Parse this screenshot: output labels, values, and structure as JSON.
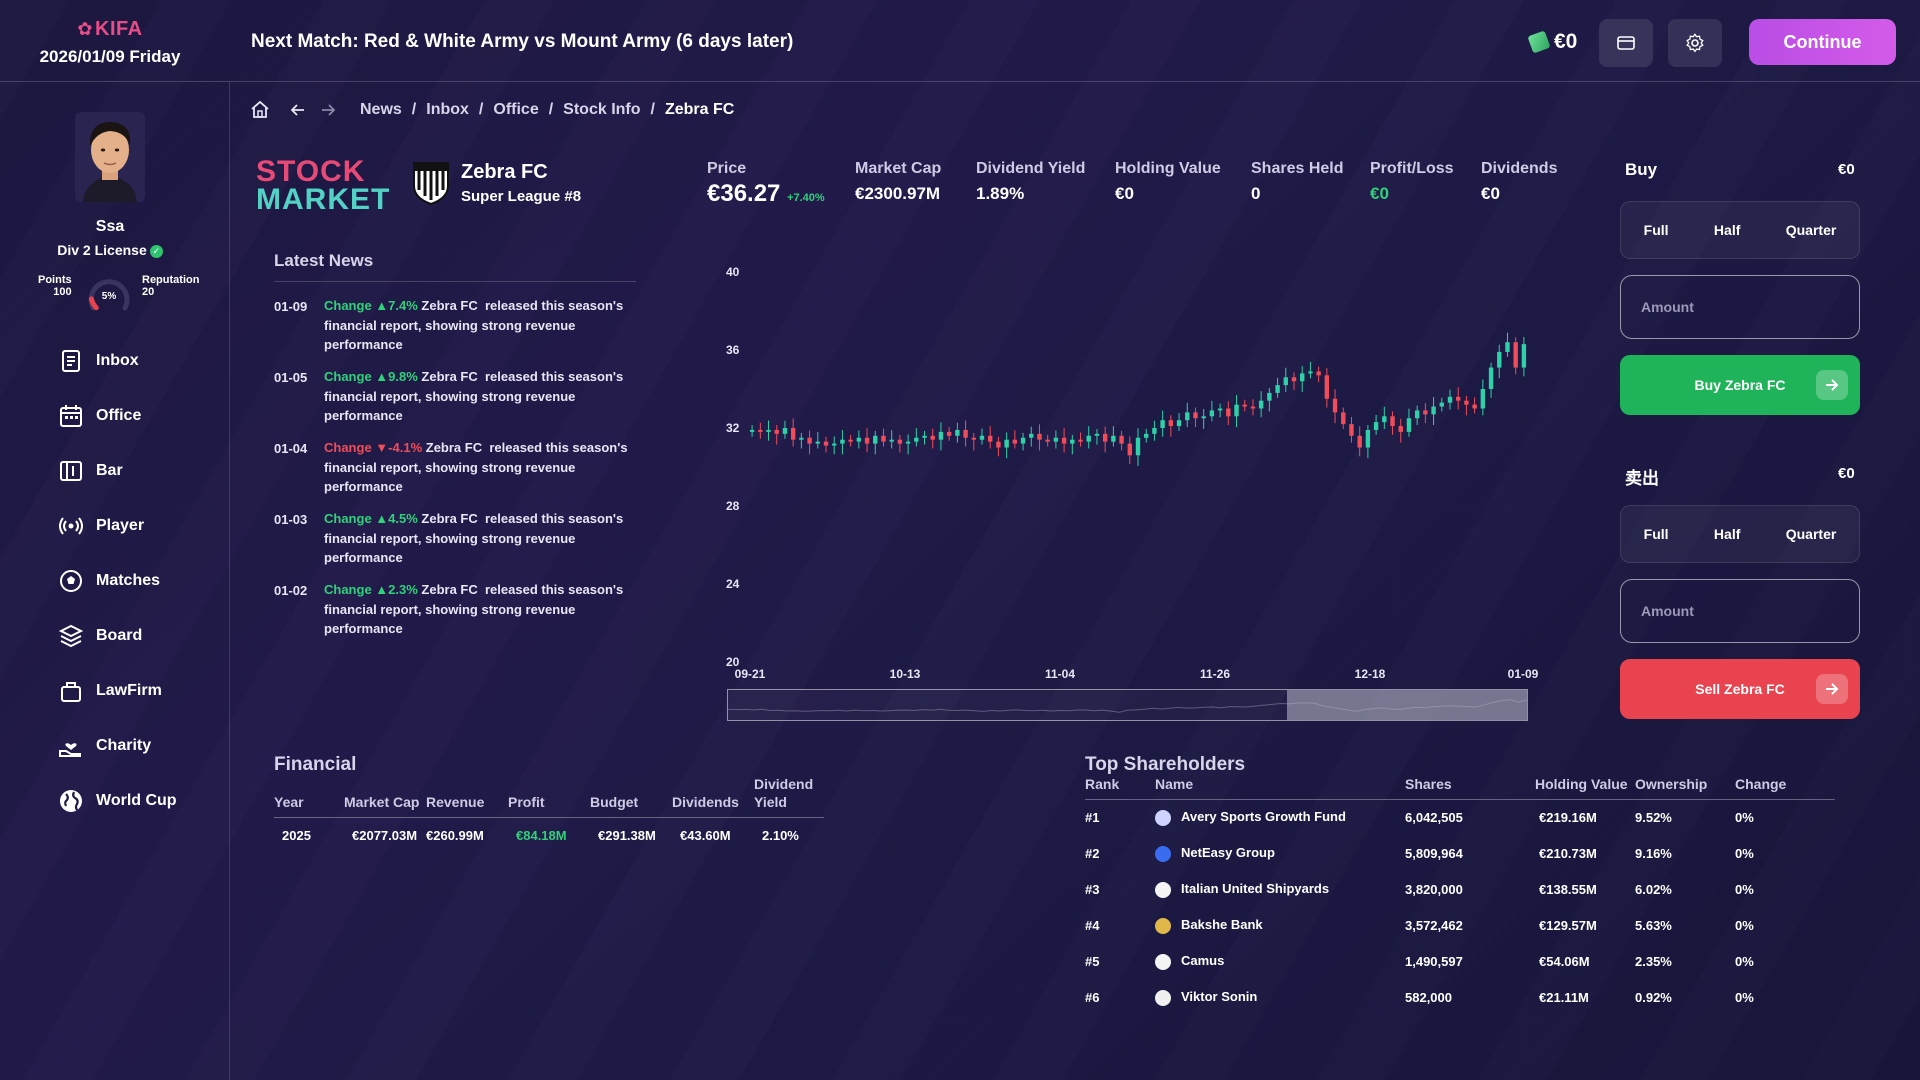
{
  "header": {
    "brand": "KIFA",
    "date": "2026/01/09 Friday",
    "next_match": "Next Match: Red & White Army vs Mount Army (6 days later)",
    "money": "€0",
    "continue_label": "Continue"
  },
  "profile": {
    "name": "Ssa",
    "license": "Div 2 License",
    "points_label": "Points",
    "points": "100",
    "gauge_value": "5%",
    "gauge_fraction": 0.05,
    "reputation_label": "Reputation",
    "reputation": "20"
  },
  "sidebar": {
    "items": [
      {
        "label": "Inbox",
        "icon": "inbox-icon"
      },
      {
        "label": "Office",
        "icon": "calendar-icon"
      },
      {
        "label": "Bar",
        "icon": "bar-icon"
      },
      {
        "label": "Player",
        "icon": "broadcast-icon"
      },
      {
        "label": "Matches",
        "icon": "soccer-ball-icon"
      },
      {
        "label": "Board",
        "icon": "layers-icon"
      },
      {
        "label": "LawFirm",
        "icon": "briefcase-icon"
      },
      {
        "label": "Charity",
        "icon": "hand-heart-icon"
      },
      {
        "label": "World Cup",
        "icon": "globe-icon"
      }
    ]
  },
  "breadcrumb": [
    "News",
    "Inbox",
    "Office",
    "Stock Info",
    "Zebra FC"
  ],
  "stock": {
    "logo_line1": "STOCK",
    "logo_line2": "MARKET",
    "club": "Zebra FC",
    "league": "Super League #8",
    "stats": {
      "price_label": "Price",
      "price": "€36.27",
      "price_change": "+7.40%",
      "mcap_label": "Market Cap",
      "mcap": "€2300.97M",
      "dy_label": "Dividend Yield",
      "dy": "1.89%",
      "hv_label": "Holding Value",
      "hv": "€0",
      "sh_label": "Shares Held",
      "sh": "0",
      "pl_label": "Profit/Loss",
      "pl": "€0",
      "div_label": "Dividends",
      "div": "€0"
    }
  },
  "news": {
    "title": "Latest News",
    "items": [
      {
        "date": "01-09",
        "change_label": "Change",
        "dir": "up",
        "change": "▲7.4%",
        "club": "Zebra FC",
        "text": "released this season's financial report, showing strong revenue performance"
      },
      {
        "date": "01-05",
        "change_label": "Change",
        "dir": "up",
        "change": "▲9.8%",
        "club": "Zebra FC",
        "text": "released this season's financial report, showing strong revenue performance"
      },
      {
        "date": "01-04",
        "change_label": "Change",
        "dir": "down",
        "change": "▼-4.1%",
        "club": "Zebra FC",
        "text": "released this season's financial report, showing strong revenue performance"
      },
      {
        "date": "01-03",
        "change_label": "Change",
        "dir": "up",
        "change": "▲4.5%",
        "club": "Zebra FC",
        "text": "released this season's financial report, showing strong revenue performance"
      },
      {
        "date": "01-02",
        "change_label": "Change",
        "dir": "up",
        "change": "▲2.3%",
        "club": "Zebra FC",
        "text": "released this season's financial report, showing strong revenue performance"
      }
    ]
  },
  "chart_data": {
    "type": "line",
    "y_ticks": [
      "40",
      "36",
      "32",
      "28",
      "24",
      "20"
    ],
    "ylim": [
      20,
      40
    ],
    "x_ticks": [
      "09-21",
      "10-13",
      "11-04",
      "11-26",
      "12-18",
      "01-09"
    ],
    "closes": [
      31.9,
      31.8,
      31.9,
      31.7,
      32.0,
      31.4,
      31.5,
      31.2,
      31.3,
      31.1,
      31.2,
      31.4,
      31.3,
      31.5,
      31.2,
      31.6,
      31.3,
      31.4,
      31.2,
      31.3,
      31.5,
      31.6,
      31.4,
      31.8,
      31.6,
      31.9,
      31.5,
      31.4,
      31.6,
      31.3,
      31.0,
      31.4,
      31.2,
      31.5,
      31.7,
      31.4,
      31.3,
      31.5,
      31.2,
      31.4,
      31.3,
      31.6,
      31.7,
      31.3,
      31.6,
      31.2,
      30.6,
      31.5,
      31.7,
      32.0,
      32.4,
      32.1,
      32.4,
      32.8,
      32.5,
      32.6,
      32.9,
      33.0,
      32.6,
      33.2,
      33.1,
      33.0,
      33.4,
      33.8,
      34.2,
      34.6,
      34.4,
      34.8,
      34.9,
      34.7,
      33.5,
      32.8,
      32.2,
      31.6,
      31.0,
      31.9,
      32.3,
      32.6,
      32.1,
      31.8,
      32.5,
      32.9,
      32.7,
      33.1,
      33.3,
      33.6,
      33.4,
      33.2,
      33.0,
      34.0,
      35.1,
      35.9,
      36.4,
      35.1,
      36.3
    ]
  },
  "buy": {
    "title": "Buy",
    "value": "€0",
    "opts": [
      "Full",
      "Half",
      "Quarter"
    ],
    "amount_placeholder": "Amount",
    "button": "Buy Zebra FC"
  },
  "sell": {
    "title": "卖出",
    "value": "€0",
    "opts": [
      "Full",
      "Half",
      "Quarter"
    ],
    "amount_placeholder": "Amount",
    "button": "Sell Zebra FC"
  },
  "financial": {
    "title": "Financial",
    "headers": [
      "Year",
      "Market Cap",
      "Revenue",
      "Profit",
      "Budget",
      "Dividends",
      "Dividend Yield"
    ],
    "rows": [
      [
        "2025",
        "€2077.03M",
        "€260.99M",
        "€84.18M",
        "€291.38M",
        "€43.60M",
        "2.10%"
      ]
    ]
  },
  "shareholders": {
    "title": "Top Shareholders",
    "headers": [
      "Rank",
      "Name",
      "Shares",
      "Holding Value",
      "Ownership",
      "Change"
    ],
    "rows": [
      {
        "rank": "#1",
        "name": "Avery Sports Growth Fund",
        "shares": "6,042,505",
        "value": "€219.16M",
        "own": "9.52%",
        "chg": "0%"
      },
      {
        "rank": "#2",
        "name": "NetEasy Group",
        "shares": "5,809,964",
        "value": "€210.73M",
        "own": "9.16%",
        "chg": "0%"
      },
      {
        "rank": "#3",
        "name": "Italian United Shipyards",
        "shares": "3,820,000",
        "value": "€138.55M",
        "own": "6.02%",
        "chg": "0%"
      },
      {
        "rank": "#4",
        "name": "Bakshe Bank",
        "shares": "3,572,462",
        "value": "€129.57M",
        "own": "5.63%",
        "chg": "0%"
      },
      {
        "rank": "#5",
        "name": "Camus",
        "shares": "1,490,597",
        "value": "€54.06M",
        "own": "2.35%",
        "chg": "0%"
      },
      {
        "rank": "#6",
        "name": "Viktor Sonin",
        "shares": "582,000",
        "value": "€21.11M",
        "own": "0.92%",
        "chg": "0%"
      }
    ]
  },
  "colors": {
    "up": "#2fd17a",
    "down": "#ef4d5a",
    "buy": "#1fb45a",
    "sell": "#e8434e",
    "accent": "#c452e6"
  }
}
